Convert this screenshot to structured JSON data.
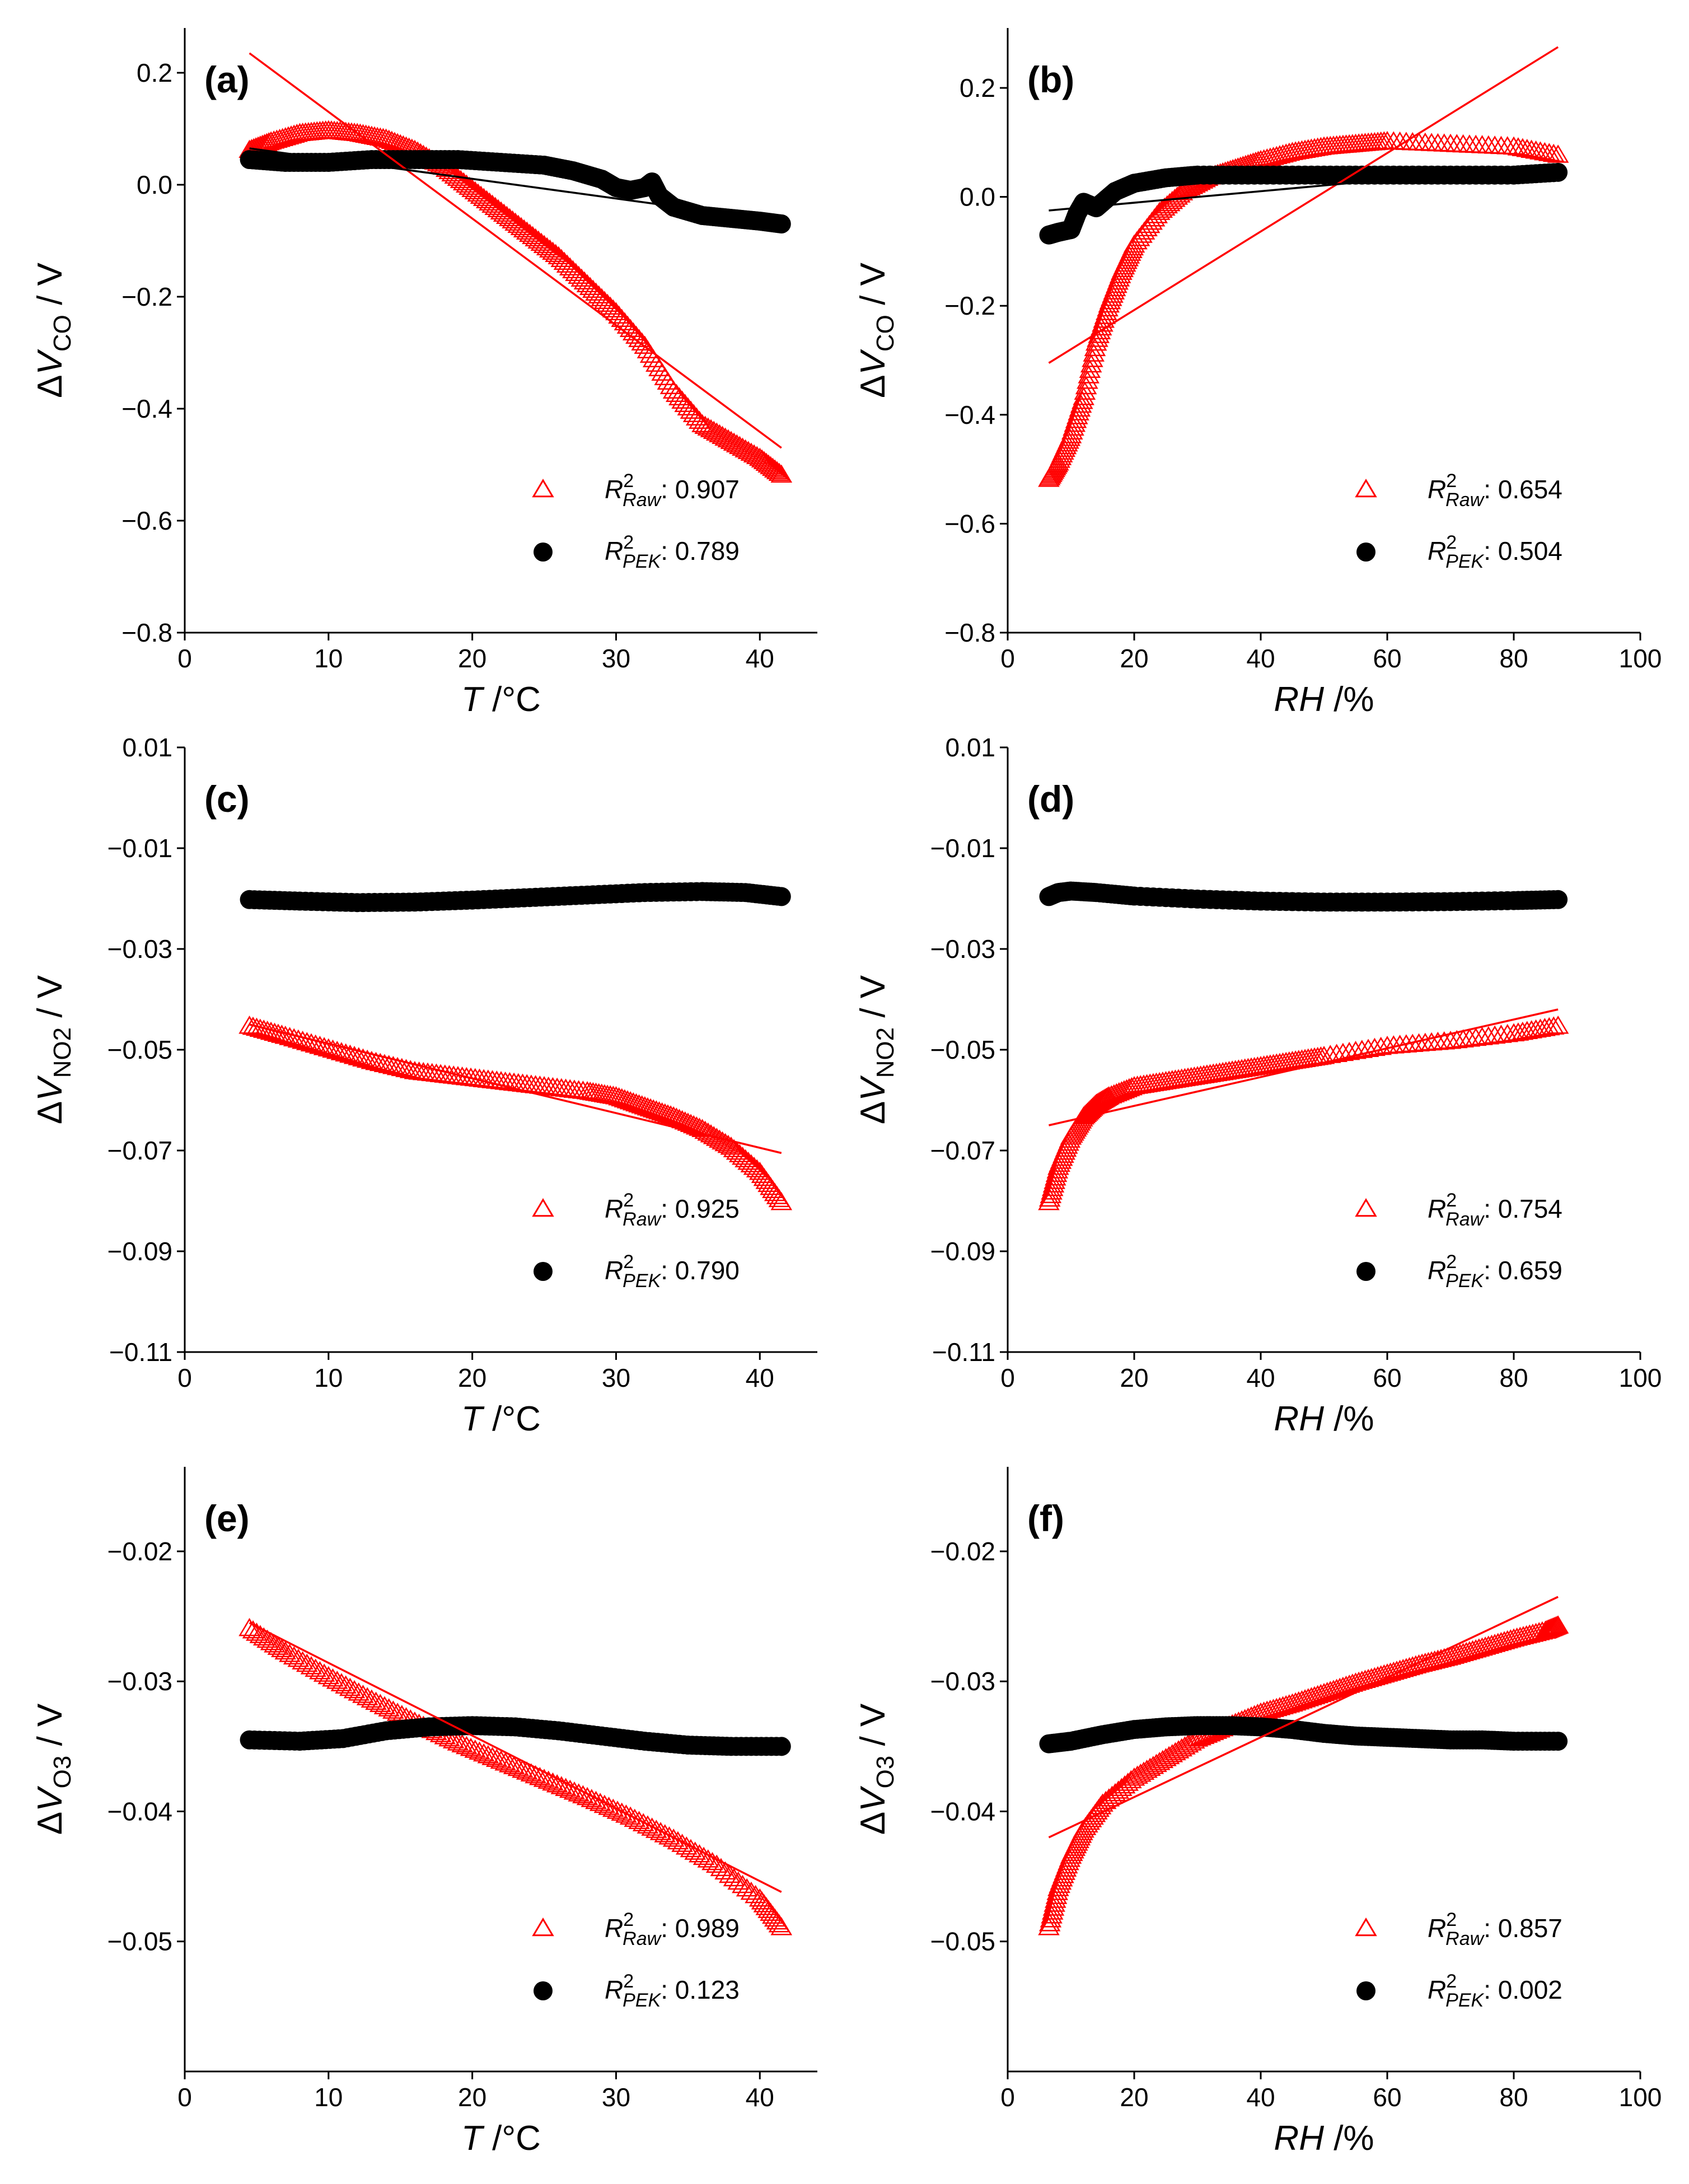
{
  "colors": {
    "raw": "#ff0000",
    "pek": "#000000"
  },
  "chart_data": [
    {
      "id": "a",
      "panel_label": "(a)",
      "type": "scatter",
      "xlabel": "T /°C",
      "ylabel": "ΔV_CO / V",
      "xlim": [
        0,
        44
      ],
      "ylim": [
        -0.8,
        0.28
      ],
      "xticks": [
        0,
        10,
        20,
        30,
        40
      ],
      "yticks": [
        0.2,
        0.0,
        -0.2,
        -0.4,
        -0.6,
        -0.8
      ],
      "xtick_labels": [
        "0",
        "10",
        "20",
        "30",
        "40"
      ],
      "ytick_labels": [
        "0.2",
        "0.0",
        "−0.2",
        "−0.4",
        "−0.6",
        "−0.8"
      ],
      "legend": [
        {
          "series": "raw",
          "marker": "open-triangle",
          "label": "R²_Raw: 0.907"
        },
        {
          "series": "pek",
          "marker": "filled-circle",
          "label": "R²_PEK: 0.789"
        }
      ],
      "series": [
        {
          "name": "Raw",
          "color": "#ff0000",
          "marker": "open-triangle",
          "x": [
            4.5,
            6,
            8,
            10,
            12,
            14,
            16,
            18,
            20,
            22,
            24,
            26,
            28,
            30,
            32,
            34,
            36,
            38,
            40,
            41.5
          ],
          "y": [
            0.06,
            0.075,
            0.09,
            0.095,
            0.09,
            0.08,
            0.06,
            0.03,
            -0.01,
            -0.05,
            -0.09,
            -0.13,
            -0.18,
            -0.23,
            -0.29,
            -0.37,
            -0.43,
            -0.46,
            -0.49,
            -0.52
          ]
        },
        {
          "name": "PEK",
          "color": "#000000",
          "marker": "filled-circle",
          "x": [
            4.5,
            7,
            10,
            13,
            16,
            19,
            22,
            25,
            27,
            29,
            30,
            31,
            32,
            32.5,
            33,
            34,
            36,
            38,
            40,
            41.5
          ],
          "y": [
            0.045,
            0.04,
            0.04,
            0.045,
            0.045,
            0.045,
            0.04,
            0.035,
            0.025,
            0.01,
            -0.005,
            -0.01,
            -0.005,
            0.005,
            -0.02,
            -0.04,
            -0.055,
            -0.06,
            -0.065,
            -0.07
          ]
        }
      ],
      "fits": [
        {
          "series": "Raw",
          "color": "#ff0000",
          "x": [
            4.5,
            41.5
          ],
          "y": [
            0.235,
            -0.47
          ]
        },
        {
          "series": "PEK",
          "color": "#000000",
          "x": [
            4.5,
            41.5
          ],
          "y": [
            0.065,
            -0.065
          ]
        }
      ]
    },
    {
      "id": "b",
      "panel_label": "(b)",
      "type": "scatter",
      "xlabel": "RH /%",
      "ylabel": "ΔV_CO / V",
      "xlim": [
        0,
        100
      ],
      "ylim": [
        -0.8,
        0.31
      ],
      "xticks": [
        0,
        20,
        40,
        60,
        80,
        100
      ],
      "yticks": [
        0.2,
        0.0,
        -0.2,
        -0.4,
        -0.6,
        -0.8
      ],
      "xtick_labels": [
        "0",
        "20",
        "40",
        "60",
        "80",
        "100"
      ],
      "ytick_labels": [
        "0.2",
        "0.0",
        "−0.2",
        "−0.4",
        "−0.6",
        "−0.8"
      ],
      "legend": [
        {
          "series": "raw",
          "marker": "open-triangle",
          "label": "R²_Raw: 0.654"
        },
        {
          "series": "pek",
          "marker": "filled-circle",
          "label": "R²_PEK: 0.504"
        }
      ],
      "series": [
        {
          "name": "Raw",
          "color": "#ff0000",
          "marker": "open-triangle",
          "x": [
            6.5,
            8,
            10,
            12,
            14,
            16,
            18,
            20,
            24,
            28,
            32,
            36,
            40,
            45,
            50,
            55,
            60,
            70,
            80,
            87
          ],
          "y": [
            -0.52,
            -0.49,
            -0.44,
            -0.37,
            -0.27,
            -0.2,
            -0.14,
            -0.09,
            -0.03,
            0.01,
            0.035,
            0.05,
            0.065,
            0.08,
            0.09,
            0.095,
            0.1,
            0.095,
            0.09,
            0.075
          ]
        },
        {
          "name": "PEK",
          "color": "#000000",
          "marker": "filled-circle",
          "x": [
            6.5,
            8,
            10,
            11,
            12,
            13,
            14,
            15,
            17,
            20,
            25,
            30,
            40,
            50,
            60,
            70,
            80,
            87
          ],
          "y": [
            -0.07,
            -0.065,
            -0.06,
            -0.03,
            -0.01,
            -0.015,
            -0.02,
            -0.01,
            0.01,
            0.025,
            0.035,
            0.04,
            0.04,
            0.04,
            0.04,
            0.04,
            0.04,
            0.045
          ]
        }
      ],
      "fits": [
        {
          "series": "Raw",
          "color": "#ff0000",
          "x": [
            6.5,
            87
          ],
          "y": [
            -0.305,
            0.275
          ]
        },
        {
          "series": "PEK",
          "color": "#000000",
          "x": [
            6.5,
            87
          ],
          "y": [
            -0.025,
            0.06
          ]
        }
      ]
    },
    {
      "id": "c",
      "panel_label": "(c)",
      "type": "scatter",
      "xlabel": "T /°C",
      "ylabel": "ΔV_NO2 / V",
      "xlim": [
        0,
        44
      ],
      "ylim": [
        -0.11,
        0.01
      ],
      "xticks": [
        0,
        10,
        20,
        30,
        40
      ],
      "yticks": [
        0.01,
        -0.01,
        -0.03,
        -0.05,
        -0.07,
        -0.09,
        -0.11
      ],
      "xtick_labels": [
        "0",
        "10",
        "20",
        "30",
        "40"
      ],
      "ytick_labels": [
        "0.01",
        "−0.01",
        "−0.03",
        "−0.05",
        "−0.07",
        "−0.09",
        "−0.11"
      ],
      "legend": [
        {
          "series": "raw",
          "marker": "open-triangle",
          "label": "R²_Raw: 0.925"
        },
        {
          "series": "pek",
          "marker": "filled-circle",
          "label": "R²_PEK: 0.790"
        }
      ],
      "series": [
        {
          "name": "Raw",
          "color": "#ff0000",
          "marker": "open-triangle",
          "x": [
            4.5,
            7,
            10,
            13,
            16,
            19,
            22,
            25,
            28,
            30,
            32,
            34,
            36,
            38,
            40,
            41.5
          ],
          "y": [
            -0.0455,
            -0.0475,
            -0.05,
            -0.0525,
            -0.0545,
            -0.0555,
            -0.0565,
            -0.0575,
            -0.0585,
            -0.0595,
            -0.0615,
            -0.0635,
            -0.066,
            -0.0695,
            -0.0745,
            -0.0805
          ]
        },
        {
          "name": "PEK",
          "color": "#000000",
          "marker": "filled-circle",
          "x": [
            4.5,
            8,
            12,
            16,
            20,
            24,
            28,
            32,
            36,
            39,
            41.5
          ],
          "y": [
            -0.0202,
            -0.0205,
            -0.0208,
            -0.0207,
            -0.0203,
            -0.0198,
            -0.0193,
            -0.0188,
            -0.0186,
            -0.0188,
            -0.0196
          ]
        }
      ],
      "fits": [
        {
          "series": "Raw",
          "color": "#ff0000",
          "x": [
            4.5,
            41.5
          ],
          "y": [
            -0.045,
            -0.0705
          ]
        }
      ]
    },
    {
      "id": "d",
      "panel_label": "(d)",
      "type": "scatter",
      "xlabel": "RH /%",
      "ylabel": "ΔV_NO2 / V",
      "xlim": [
        0,
        100
      ],
      "ylim": [
        -0.11,
        0.01
      ],
      "xticks": [
        0,
        20,
        40,
        60,
        80,
        100
      ],
      "yticks": [
        0.01,
        -0.01,
        -0.03,
        -0.05,
        -0.07,
        -0.09,
        -0.11
      ],
      "xtick_labels": [
        "0",
        "20",
        "40",
        "60",
        "80",
        "100"
      ],
      "ytick_labels": [
        "0.01",
        "−0.01",
        "−0.03",
        "−0.05",
        "−0.07",
        "−0.09",
        "−0.11"
      ],
      "legend": [
        {
          "series": "raw",
          "marker": "open-triangle",
          "label": "R²_Raw: 0.754"
        },
        {
          "series": "pek",
          "marker": "filled-circle",
          "label": "R²_PEK: 0.659"
        }
      ],
      "series": [
        {
          "name": "Raw",
          "color": "#ff0000",
          "marker": "open-triangle",
          "x": [
            6.5,
            8,
            10,
            12,
            14,
            16,
            20,
            25,
            30,
            35,
            40,
            45,
            50,
            60,
            70,
            80,
            87
          ],
          "y": [
            -0.0805,
            -0.0735,
            -0.0675,
            -0.0635,
            -0.061,
            -0.0595,
            -0.0575,
            -0.0565,
            -0.0555,
            -0.0545,
            -0.0535,
            -0.0525,
            -0.0515,
            -0.0495,
            -0.0485,
            -0.047,
            -0.0455
          ]
        },
        {
          "name": "PEK",
          "color": "#000000",
          "marker": "filled-circle",
          "x": [
            6.5,
            8,
            10,
            14,
            20,
            30,
            40,
            50,
            60,
            70,
            80,
            87
          ],
          "y": [
            -0.0196,
            -0.0188,
            -0.0185,
            -0.0188,
            -0.0195,
            -0.0201,
            -0.0205,
            -0.0207,
            -0.0207,
            -0.0206,
            -0.0204,
            -0.0202
          ]
        }
      ],
      "fits": [
        {
          "series": "Raw",
          "color": "#ff0000",
          "x": [
            6.5,
            87
          ],
          "y": [
            -0.065,
            -0.042
          ]
        }
      ]
    },
    {
      "id": "e",
      "panel_label": "(e)",
      "type": "scatter",
      "xlabel": "T /°C",
      "ylabel": "ΔV_O3 / V",
      "xlim": [
        0,
        44
      ],
      "ylim": [
        -0.06,
        -0.0135
      ],
      "xticks": [
        0,
        10,
        20,
        30,
        40
      ],
      "yticks": [
        -0.02,
        -0.03,
        -0.04,
        -0.05
      ],
      "xtick_labels": [
        "0",
        "10",
        "20",
        "30",
        "40"
      ],
      "ytick_labels": [
        "−0.02",
        "−0.03",
        "−0.04",
        "−0.05"
      ],
      "legend": [
        {
          "series": "raw",
          "marker": "open-triangle",
          "label": "R²_Raw: 0.989"
        },
        {
          "series": "pek",
          "marker": "filled-circle",
          "label": "R²_PEK: 0.123"
        }
      ],
      "series": [
        {
          "name": "Raw",
          "color": "#ff0000",
          "marker": "open-triangle",
          "x": [
            4.5,
            7,
            10,
            13,
            16,
            19,
            22,
            25,
            28,
            31,
            34,
            37,
            40,
            41.5
          ],
          "y": [
            -0.026,
            -0.0278,
            -0.0297,
            -0.0315,
            -0.0332,
            -0.0348,
            -0.0362,
            -0.0376,
            -0.039,
            -0.0405,
            -0.0422,
            -0.0442,
            -0.0468,
            -0.049
          ]
        },
        {
          "name": "PEK",
          "color": "#000000",
          "marker": "filled-circle",
          "x": [
            4.5,
            8,
            11,
            14,
            17,
            20,
            23,
            26,
            29,
            32,
            35,
            38,
            41.5
          ],
          "y": [
            -0.0345,
            -0.0346,
            -0.0344,
            -0.0338,
            -0.0335,
            -0.0334,
            -0.0335,
            -0.0338,
            -0.0342,
            -0.0346,
            -0.0349,
            -0.035,
            -0.035
          ]
        }
      ],
      "fits": [
        {
          "series": "Raw",
          "color": "#ff0000",
          "x": [
            4.5,
            41.5
          ],
          "y": [
            -0.0255,
            -0.0462
          ]
        }
      ]
    },
    {
      "id": "f",
      "panel_label": "(f)",
      "type": "scatter",
      "xlabel": "RH /%",
      "ylabel": "ΔV_O3 / V",
      "xlim": [
        0,
        100
      ],
      "ylim": [
        -0.06,
        -0.0135
      ],
      "xticks": [
        0,
        20,
        40,
        60,
        80,
        100
      ],
      "yticks": [
        -0.02,
        -0.03,
        -0.04,
        -0.05
      ],
      "xtick_labels": [
        "0",
        "20",
        "40",
        "60",
        "80",
        "100"
      ],
      "ytick_labels": [
        "−0.02",
        "−0.03",
        "−0.04",
        "−0.05"
      ],
      "legend": [
        {
          "series": "raw",
          "marker": "open-triangle",
          "label": "R²_Raw: 0.857"
        },
        {
          "series": "pek",
          "marker": "filled-circle",
          "label": "R²_PEK: 0.002"
        }
      ],
      "series": [
        {
          "name": "Raw",
          "color": "#ff0000",
          "marker": "open-triangle",
          "x": [
            6.5,
            8,
            10,
            12,
            15,
            20,
            25,
            30,
            35,
            40,
            45,
            50,
            55,
            60,
            65,
            70,
            75,
            80,
            85,
            87
          ],
          "y": [
            -0.049,
            -0.046,
            -0.0435,
            -0.0415,
            -0.0395,
            -0.0375,
            -0.036,
            -0.0345,
            -0.0335,
            -0.0325,
            -0.0318,
            -0.031,
            -0.0302,
            -0.0295,
            -0.0288,
            -0.0282,
            -0.0275,
            -0.0268,
            -0.0262,
            -0.0258
          ]
        },
        {
          "name": "PEK",
          "color": "#000000",
          "marker": "filled-circle",
          "x": [
            6.5,
            10,
            15,
            20,
            25,
            30,
            35,
            40,
            45,
            50,
            55,
            60,
            65,
            70,
            75,
            80,
            87
          ],
          "y": [
            -0.0348,
            -0.0346,
            -0.0341,
            -0.0337,
            -0.0335,
            -0.0334,
            -0.0334,
            -0.0335,
            -0.0337,
            -0.034,
            -0.0342,
            -0.0343,
            -0.0344,
            -0.0345,
            -0.0345,
            -0.0346,
            -0.0346
          ]
        }
      ],
      "fits": [
        {
          "series": "Raw",
          "color": "#ff0000",
          "x": [
            6.5,
            87
          ],
          "y": [
            -0.042,
            -0.0235
          ]
        }
      ]
    }
  ]
}
